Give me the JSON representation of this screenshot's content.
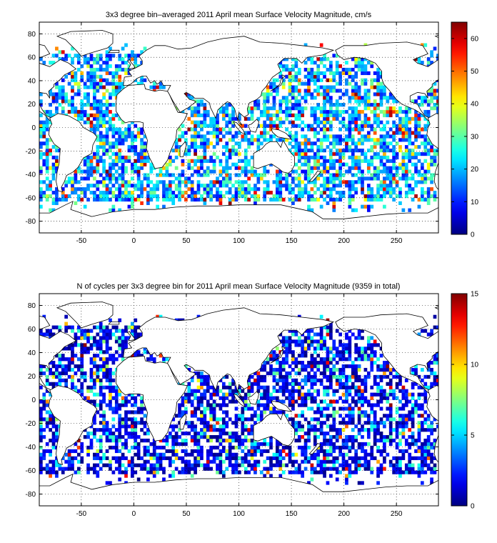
{
  "chart_data": [
    {
      "type": "heatmap",
      "title": "3x3 degree bin–averaged 2011 April mean Surface Velocity Magnitude, cm/s",
      "xlabel": "",
      "ylabel": "",
      "xlim": [
        -90,
        290
      ],
      "ylim": [
        -90,
        90
      ],
      "xticks": [
        -50,
        0,
        50,
        100,
        150,
        200,
        250
      ],
      "yticks": [
        -80,
        -60,
        -40,
        -20,
        0,
        20,
        40,
        60,
        80
      ],
      "bin_size_deg": 3,
      "colorbar": {
        "min": 0,
        "max": 65,
        "ticks": [
          0,
          10,
          20,
          30,
          40,
          50,
          60
        ]
      },
      "colormap": "jet",
      "grid": true,
      "seed": 11
    },
    {
      "type": "heatmap",
      "title": "N of cycles per 3x3 degree bin for 2011 April mean Surface Velocity Magnitude (9359 in total)",
      "xlabel": "",
      "ylabel": "",
      "xlim": [
        -90,
        290
      ],
      "ylim": [
        -90,
        90
      ],
      "xticks": [
        -50,
        0,
        50,
        100,
        150,
        200,
        250
      ],
      "yticks": [
        -80,
        -60,
        -40,
        -20,
        0,
        20,
        40,
        60,
        80
      ],
      "bin_size_deg": 3,
      "colorbar": {
        "min": 0,
        "max": 15,
        "ticks": [
          0,
          5,
          10,
          15
        ]
      },
      "colormap": "jet",
      "grid": true,
      "seed": 29
    }
  ]
}
